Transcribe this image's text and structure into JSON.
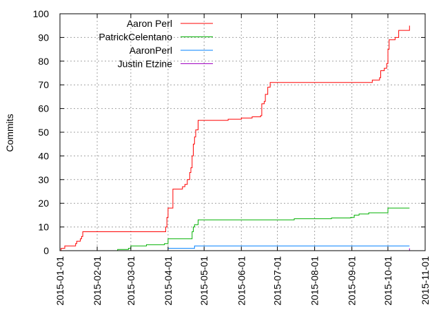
{
  "chart_data": {
    "type": "line",
    "title": "",
    "xlabel": "",
    "ylabel": "Commits",
    "xlim": [
      "2015-01-01",
      "2015-11-01"
    ],
    "ylim": [
      0,
      100
    ],
    "x_ticks": [
      "2015-01-01",
      "2015-02-01",
      "2015-03-01",
      "2015-04-01",
      "2015-05-01",
      "2015-06-01",
      "2015-07-01",
      "2015-08-01",
      "2015-09-01",
      "2015-10-01",
      "2015-11-01"
    ],
    "y_ticks": [
      0,
      10,
      20,
      30,
      40,
      50,
      60,
      70,
      80,
      90,
      100
    ],
    "grid": true,
    "legend_position": "top-left",
    "series": [
      {
        "name": "Aaron Perl",
        "color": "#ff0000",
        "points": [
          [
            "2015-01-01",
            0
          ],
          [
            "2015-01-02",
            1
          ],
          [
            "2015-01-05",
            2
          ],
          [
            "2015-01-09",
            2
          ],
          [
            "2015-01-14",
            3
          ],
          [
            "2015-01-15",
            4
          ],
          [
            "2015-01-18",
            5
          ],
          [
            "2015-01-19",
            6
          ],
          [
            "2015-01-20",
            8
          ],
          [
            "2015-03-29",
            8
          ],
          [
            "2015-03-30",
            10
          ],
          [
            "2015-03-31",
            14
          ],
          [
            "2015-04-01",
            18
          ],
          [
            "2015-04-04",
            18
          ],
          [
            "2015-04-05",
            26
          ],
          [
            "2015-04-13",
            27
          ],
          [
            "2015-04-15",
            28
          ],
          [
            "2015-04-17",
            30
          ],
          [
            "2015-04-19",
            33
          ],
          [
            "2015-04-20",
            35
          ],
          [
            "2015-04-21",
            40
          ],
          [
            "2015-04-22",
            45
          ],
          [
            "2015-04-23",
            48
          ],
          [
            "2015-04-24",
            51
          ],
          [
            "2015-04-26",
            55
          ],
          [
            "2015-05-20",
            55
          ],
          [
            "2015-05-21",
            55.5
          ],
          [
            "2015-06-01",
            56
          ],
          [
            "2015-06-10",
            56.5
          ],
          [
            "2015-06-17",
            57
          ],
          [
            "2015-06-18",
            62
          ],
          [
            "2015-06-20",
            63
          ],
          [
            "2015-06-21",
            66
          ],
          [
            "2015-06-23",
            69
          ],
          [
            "2015-06-25",
            71
          ],
          [
            "2015-09-17",
            71
          ],
          [
            "2015-09-18",
            72
          ],
          [
            "2015-09-24",
            73
          ],
          [
            "2015-09-25",
            76
          ],
          [
            "2015-09-28",
            77
          ],
          [
            "2015-09-30",
            79
          ],
          [
            "2015-10-01",
            85
          ],
          [
            "2015-10-02",
            89
          ],
          [
            "2015-10-05",
            89
          ],
          [
            "2015-10-07",
            90
          ],
          [
            "2015-10-10",
            93
          ],
          [
            "2015-10-18",
            93
          ],
          [
            "2015-10-19",
            95
          ]
        ]
      },
      {
        "name": "PatrickCelentano",
        "color": "#00b000",
        "points": [
          [
            "2015-01-27",
            0
          ],
          [
            "2015-02-18",
            0.5
          ],
          [
            "2015-02-27",
            1
          ],
          [
            "2015-03-01",
            2
          ],
          [
            "2015-03-14",
            2.5
          ],
          [
            "2015-03-29",
            3
          ],
          [
            "2015-04-01",
            5
          ],
          [
            "2015-04-20",
            5
          ],
          [
            "2015-04-21",
            8
          ],
          [
            "2015-04-22",
            10
          ],
          [
            "2015-04-23",
            11
          ],
          [
            "2015-04-26",
            13
          ],
          [
            "2015-07-01",
            13
          ],
          [
            "2015-07-15",
            13.5
          ],
          [
            "2015-08-15",
            13.8
          ],
          [
            "2015-08-31",
            14
          ],
          [
            "2015-09-03",
            15
          ],
          [
            "2015-09-07",
            15.5
          ],
          [
            "2015-09-15",
            16
          ],
          [
            "2015-09-30",
            16
          ],
          [
            "2015-10-01",
            18
          ],
          [
            "2015-10-19",
            18
          ]
        ]
      },
      {
        "name": "AaronPerl",
        "color": "#0080ff",
        "points": [
          [
            "2015-04-01",
            1
          ],
          [
            "2015-04-22",
            1
          ],
          [
            "2015-04-23",
            2
          ],
          [
            "2015-10-19",
            2
          ]
        ]
      },
      {
        "name": "Justin Etzine",
        "color": "#a000c0",
        "points": [
          [
            "2015-10-15",
            0
          ],
          [
            "2015-10-19",
            1
          ]
        ]
      }
    ]
  }
}
